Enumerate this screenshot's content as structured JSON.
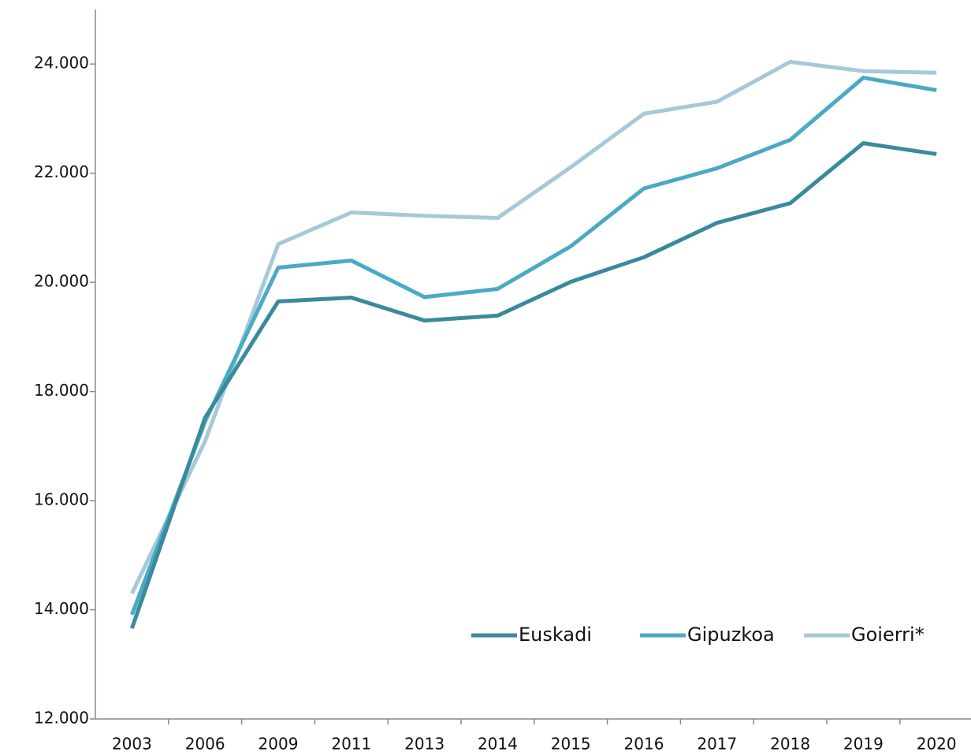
{
  "chart_data": {
    "type": "line",
    "categories": [
      "2003",
      "2006",
      "2009",
      "2011",
      "2013",
      "2014",
      "2015",
      "2016",
      "2017",
      "2018",
      "2019",
      "2020"
    ],
    "series": [
      {
        "name": "Euskadi",
        "color": "#3a8a9e",
        "values": [
          13660,
          17520,
          19650,
          19720,
          19300,
          19390,
          20010,
          20460,
          21090,
          21450,
          22550,
          22350
        ]
      },
      {
        "name": "Gipuzkoa",
        "color": "#4aaac6",
        "values": [
          13910,
          17450,
          20270,
          20400,
          19730,
          19880,
          20660,
          21720,
          22090,
          22610,
          23750,
          23520
        ]
      },
      {
        "name": "Goierri*",
        "color": "#a6c9d8",
        "values": [
          14300,
          17090,
          20700,
          21280,
          21220,
          21180,
          22110,
          23090,
          23310,
          24040,
          23870,
          23840
        ]
      }
    ],
    "ylim": [
      12000,
      25000
    ],
    "yticks": [
      {
        "value": 12000,
        "label": "12.000"
      },
      {
        "value": 14000,
        "label": "14.000"
      },
      {
        "value": 16000,
        "label": "16.000"
      },
      {
        "value": 18000,
        "label": "18.000"
      },
      {
        "value": 20000,
        "label": "20.000"
      },
      {
        "value": 22000,
        "label": "22.000"
      },
      {
        "value": 24000,
        "label": "24.000"
      }
    ],
    "legend": "bottom-right"
  }
}
